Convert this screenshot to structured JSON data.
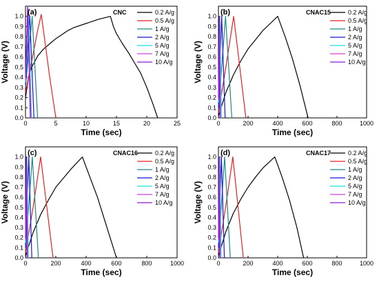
{
  "chart_data": [
    {
      "type": "line",
      "panel_label": "(a)",
      "sample": "CNC",
      "xlabel": "Time (sec)",
      "ylabel": "Voltage (V)",
      "xlim": [
        0,
        25
      ],
      "ylim": [
        0,
        1.1
      ],
      "xticks": [
        "0",
        "5",
        "10",
        "15",
        "20",
        "25"
      ],
      "yticks": [
        "0.0",
        "0.1",
        "0.2",
        "0.3",
        "0.4",
        "0.5",
        "0.6",
        "0.7",
        "0.8",
        "0.9",
        "1.0"
      ],
      "grid": false,
      "legend_position": "top-right",
      "series": [
        {
          "name": "0.2 A/g",
          "color": "#000000",
          "charge_end_time": 14.0,
          "discharge_end_time": 21.8,
          "charge": [
            [
              0,
              0.2
            ],
            [
              0.5,
              0.4
            ],
            [
              1,
              0.5
            ],
            [
              1.5,
              0.55
            ],
            [
              2,
              0.61
            ],
            [
              3,
              0.68
            ],
            [
              4,
              0.73
            ],
            [
              5,
              0.78
            ],
            [
              6,
              0.82
            ],
            [
              7,
              0.86
            ],
            [
              8,
              0.89
            ],
            [
              10,
              0.93
            ],
            [
              12,
              0.97
            ],
            [
              14,
              1.0
            ]
          ],
          "discharge": [
            [
              14,
              1.0
            ],
            [
              14.5,
              0.9
            ],
            [
              15,
              0.83
            ],
            [
              16,
              0.73
            ],
            [
              17,
              0.64
            ],
            [
              18,
              0.54
            ],
            [
              19,
              0.44
            ],
            [
              20,
              0.3
            ],
            [
              21,
              0.14
            ],
            [
              21.8,
              0.0
            ]
          ]
        },
        {
          "name": "0.5 A/g",
          "color": "#e8201e",
          "charge_end_time": 2.6,
          "discharge_end_time": 5.0,
          "charge": [
            [
              0,
              0.25
            ],
            [
              1,
              0.55
            ],
            [
              2,
              0.86
            ],
            [
              2.6,
              1.02
            ]
          ],
          "discharge": [
            [
              2.6,
              1.02
            ],
            [
              4,
              0.4
            ],
            [
              5,
              0.0
            ]
          ]
        },
        {
          "name": "1 A/g",
          "color": "#1a8a82",
          "charge_end_time": 1.1,
          "discharge_end_time": 2.0,
          "charge": [
            [
              0,
              0.3
            ],
            [
              1.1,
              1.0
            ]
          ],
          "discharge": [
            [
              1.1,
              1.0
            ],
            [
              2.0,
              0.0
            ]
          ]
        },
        {
          "name": "2 A/g",
          "color": "#1414d8",
          "charge_end_time": 0.7,
          "discharge_end_time": 1.4,
          "charge": [
            [
              0,
              0.32
            ],
            [
              0.7,
              1.0
            ]
          ],
          "discharge": [
            [
              0.7,
              1.0
            ],
            [
              1.4,
              0.0
            ]
          ]
        },
        {
          "name": "5 A/g",
          "color": "#18e0e6",
          "charge_end_time": 0.5,
          "discharge_end_time": 1.0,
          "charge": [
            [
              0,
              0.35
            ],
            [
              0.5,
              1.05
            ]
          ],
          "discharge": [
            [
              0.5,
              1.05
            ],
            [
              1.0,
              0.0
            ]
          ]
        },
        {
          "name": "7 A/g",
          "color": "#d040d8",
          "charge_end_time": 0.4,
          "discharge_end_time": 0.9,
          "charge": [
            [
              0,
              0.37
            ],
            [
              0.4,
              1.08
            ]
          ],
          "discharge": [
            [
              0.4,
              1.08
            ],
            [
              0.9,
              0.0
            ]
          ]
        },
        {
          "name": "10 A/g",
          "color": "#8a1ad8",
          "charge_end_time": 0.35,
          "discharge_end_time": 0.8,
          "charge": [
            [
              0,
              0.4
            ],
            [
              0.35,
              1.1
            ]
          ],
          "discharge": [
            [
              0.35,
              1.1
            ],
            [
              0.8,
              0.0
            ]
          ]
        }
      ]
    },
    {
      "type": "line",
      "panel_label": "(b)",
      "sample": "CNAC15",
      "xlabel": "Time (sec)",
      "ylabel": "Voltage (V)",
      "xlim": [
        0,
        1000
      ],
      "ylim": [
        0,
        1.1
      ],
      "xticks": [
        "0",
        "200",
        "400",
        "600",
        "800",
        "1000"
      ],
      "yticks": [
        "0.0",
        "0.1",
        "0.2",
        "0.3",
        "0.4",
        "0.5",
        "0.6",
        "0.7",
        "0.8",
        "0.9",
        "1.0"
      ],
      "grid": false,
      "legend_position": "top-right",
      "series": [
        {
          "name": "0.2 A/g",
          "color": "#000000",
          "charge_end_time": 400,
          "discharge_end_time": 605,
          "charge": [
            [
              0,
              0.02
            ],
            [
              50,
              0.25
            ],
            [
              100,
              0.42
            ],
            [
              150,
              0.56
            ],
            [
              200,
              0.68
            ],
            [
              250,
              0.77
            ],
            [
              300,
              0.86
            ],
            [
              350,
              0.93
            ],
            [
              400,
              1.0
            ]
          ],
          "discharge": [
            [
              400,
              1.0
            ],
            [
              450,
              0.8
            ],
            [
              500,
              0.58
            ],
            [
              550,
              0.32
            ],
            [
              605,
              0.0
            ]
          ]
        },
        {
          "name": "0.5 A/g",
          "color": "#e8201e",
          "charge_end_time": 103,
          "discharge_end_time": 185,
          "charge": [
            [
              0,
              0.05
            ],
            [
              50,
              0.5
            ],
            [
              103,
              1.0
            ]
          ],
          "discharge": [
            [
              103,
              1.0
            ],
            [
              185,
              0.0
            ]
          ]
        },
        {
          "name": "1 A/g",
          "color": "#1a8a82",
          "charge_end_time": 48,
          "discharge_end_time": 90,
          "charge": [
            [
              0,
              0.08
            ],
            [
              48,
              1.0
            ]
          ],
          "discharge": [
            [
              48,
              1.0
            ],
            [
              90,
              0.0
            ]
          ]
        },
        {
          "name": "2 A/g",
          "color": "#1414d8",
          "charge_end_time": 22,
          "discharge_end_time": 45,
          "charge": [
            [
              0,
              0.1
            ],
            [
              22,
              1.0
            ]
          ],
          "discharge": [
            [
              22,
              1.0
            ],
            [
              45,
              0.0
            ]
          ]
        },
        {
          "name": "5 A/g",
          "color": "#18e0e6",
          "charge_end_time": 10,
          "discharge_end_time": 20,
          "charge": [
            [
              0,
              0.15
            ],
            [
              10,
              1.0
            ]
          ],
          "discharge": [
            [
              10,
              1.0
            ],
            [
              20,
              0.0
            ]
          ]
        },
        {
          "name": "7 A/g",
          "color": "#d040d8",
          "charge_end_time": 7,
          "discharge_end_time": 14,
          "charge": [
            [
              0,
              0.18
            ],
            [
              7,
              1.0
            ]
          ],
          "discharge": [
            [
              7,
              1.0
            ],
            [
              14,
              0.0
            ]
          ]
        },
        {
          "name": "10 A/g",
          "color": "#8a1ad8",
          "charge_end_time": 5,
          "discharge_end_time": 10,
          "charge": [
            [
              0,
              0.2
            ],
            [
              5,
              1.0
            ]
          ],
          "discharge": [
            [
              5,
              1.0
            ],
            [
              10,
              0.0
            ]
          ]
        }
      ]
    },
    {
      "type": "line",
      "panel_label": "(c)",
      "sample": "CNAC16",
      "xlabel": "Time (sec)",
      "ylabel": "Voltage (V)",
      "xlim": [
        0,
        1000
      ],
      "ylim": [
        0,
        1.1
      ],
      "xticks": [
        "0",
        "200",
        "400",
        "600",
        "800",
        "1000"
      ],
      "yticks": [
        "0.0",
        "0.1",
        "0.2",
        "0.3",
        "0.4",
        "0.5",
        "0.6",
        "0.7",
        "0.8",
        "0.9",
        "1.0"
      ],
      "grid": false,
      "legend_position": "top-right",
      "series": [
        {
          "name": "0.2 A/g",
          "color": "#000000",
          "charge_end_time": 375,
          "discharge_end_time": 600,
          "charge": [
            [
              0,
              0.02
            ],
            [
              50,
              0.25
            ],
            [
              100,
              0.43
            ],
            [
              150,
              0.57
            ],
            [
              200,
              0.7
            ],
            [
              250,
              0.79
            ],
            [
              300,
              0.88
            ],
            [
              375,
              1.0
            ]
          ],
          "discharge": [
            [
              375,
              1.0
            ],
            [
              425,
              0.8
            ],
            [
              475,
              0.6
            ],
            [
              525,
              0.36
            ],
            [
              600,
              0.0
            ]
          ]
        },
        {
          "name": "0.5 A/g",
          "color": "#e8201e",
          "charge_end_time": 100,
          "discharge_end_time": 182,
          "charge": [
            [
              0,
              0.05
            ],
            [
              50,
              0.5
            ],
            [
              100,
              1.0
            ]
          ],
          "discharge": [
            [
              100,
              1.0
            ],
            [
              182,
              0.0
            ]
          ]
        },
        {
          "name": "1 A/g",
          "color": "#1a8a82",
          "charge_end_time": 45,
          "discharge_end_time": 85,
          "charge": [
            [
              0,
              0.08
            ],
            [
              45,
              1.0
            ]
          ],
          "discharge": [
            [
              45,
              1.0
            ],
            [
              85,
              0.0
            ]
          ]
        },
        {
          "name": "2 A/g",
          "color": "#1414d8",
          "charge_end_time": 22,
          "discharge_end_time": 42,
          "charge": [
            [
              0,
              0.1
            ],
            [
              22,
              1.0
            ]
          ],
          "discharge": [
            [
              22,
              1.0
            ],
            [
              42,
              0.0
            ]
          ]
        },
        {
          "name": "5 A/g",
          "color": "#18e0e6",
          "charge_end_time": 10,
          "discharge_end_time": 19,
          "charge": [
            [
              0,
              0.15
            ],
            [
              10,
              1.0
            ]
          ],
          "discharge": [
            [
              10,
              1.0
            ],
            [
              19,
              0.0
            ]
          ]
        },
        {
          "name": "7 A/g",
          "color": "#d040d8",
          "charge_end_time": 7,
          "discharge_end_time": 14,
          "charge": [
            [
              0,
              0.18
            ],
            [
              7,
              1.0
            ]
          ],
          "discharge": [
            [
              7,
              1.0
            ],
            [
              14,
              0.0
            ]
          ]
        },
        {
          "name": "10 A/g",
          "color": "#8a1ad8",
          "charge_end_time": 5,
          "discharge_end_time": 10,
          "charge": [
            [
              0,
              0.2
            ],
            [
              5,
              1.0
            ]
          ],
          "discharge": [
            [
              5,
              1.0
            ],
            [
              10,
              0.0
            ]
          ]
        }
      ]
    },
    {
      "type": "line",
      "panel_label": "(d)",
      "sample": "CNAC17",
      "xlabel": "Time (sec)",
      "ylabel": "Voltage (V)",
      "xlim": [
        0,
        1000
      ],
      "ylim": [
        0,
        1.1
      ],
      "xticks": [
        "0",
        "200",
        "400",
        "600",
        "800",
        "1000"
      ],
      "yticks": [
        "0.0",
        "0.1",
        "0.2",
        "0.3",
        "0.4",
        "0.5",
        "0.6",
        "0.7",
        "0.8",
        "0.9",
        "1.0"
      ],
      "grid": false,
      "legend_position": "top-right",
      "series": [
        {
          "name": "0.2 A/g",
          "color": "#000000",
          "charge_end_time": 380,
          "discharge_end_time": 575,
          "charge": [
            [
              0,
              0.02
            ],
            [
              50,
              0.26
            ],
            [
              100,
              0.44
            ],
            [
              150,
              0.58
            ],
            [
              200,
              0.7
            ],
            [
              250,
              0.8
            ],
            [
              300,
              0.89
            ],
            [
              380,
              1.0
            ]
          ],
          "discharge": [
            [
              380,
              1.0
            ],
            [
              430,
              0.8
            ],
            [
              480,
              0.57
            ],
            [
              530,
              0.3
            ],
            [
              575,
              0.0
            ]
          ]
        },
        {
          "name": "0.5 A/g",
          "color": "#e8201e",
          "charge_end_time": 97,
          "discharge_end_time": 168,
          "charge": [
            [
              0,
              0.05
            ],
            [
              50,
              0.52
            ],
            [
              97,
              1.0
            ]
          ],
          "discharge": [
            [
              97,
              1.0
            ],
            [
              168,
              0.0
            ]
          ]
        },
        {
          "name": "1 A/g",
          "color": "#1a8a82",
          "charge_end_time": 42,
          "discharge_end_time": 80,
          "charge": [
            [
              0,
              0.08
            ],
            [
              42,
              1.0
            ]
          ],
          "discharge": [
            [
              42,
              1.0
            ],
            [
              80,
              0.0
            ]
          ]
        },
        {
          "name": "2 A/g",
          "color": "#1414d8",
          "charge_end_time": 20,
          "discharge_end_time": 40,
          "charge": [
            [
              0,
              0.1
            ],
            [
              20,
              1.0
            ]
          ],
          "discharge": [
            [
              20,
              1.0
            ],
            [
              40,
              0.0
            ]
          ]
        },
        {
          "name": "5 A/g",
          "color": "#18e0e6",
          "charge_end_time": 9,
          "discharge_end_time": 18,
          "charge": [
            [
              0,
              0.15
            ],
            [
              9,
              1.0
            ]
          ],
          "discharge": [
            [
              9,
              1.0
            ],
            [
              18,
              0.0
            ]
          ]
        },
        {
          "name": "7 A/g",
          "color": "#d040d8",
          "charge_end_time": 6,
          "discharge_end_time": 13,
          "charge": [
            [
              0,
              0.18
            ],
            [
              6,
              1.0
            ]
          ],
          "discharge": [
            [
              6,
              1.0
            ],
            [
              13,
              0.0
            ]
          ]
        },
        {
          "name": "10 A/g",
          "color": "#8a1ad8",
          "charge_end_time": 4,
          "discharge_end_time": 9,
          "charge": [
            [
              0,
              0.2
            ],
            [
              4,
              1.0
            ]
          ],
          "discharge": [
            [
              4,
              1.0
            ],
            [
              9,
              0.0
            ]
          ]
        }
      ]
    }
  ]
}
